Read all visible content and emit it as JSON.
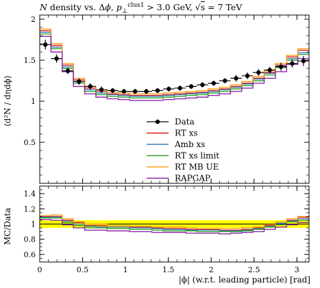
{
  "title": "N density vs. Δφ, p⊥clus1 > 3.0 GeV, √s = 7 TeV",
  "main_ylabel": "⟨d²N / dηdϕ⟩",
  "ratio_ylabel": "MC/Data",
  "xlabel": "|ϕ| (w.r.t. leading particle) [rad]",
  "chart_data": [
    {
      "type": "line",
      "panel": "main",
      "xlim": [
        0,
        3.1416
      ],
      "ylim": [
        0,
        2.05
      ],
      "x_ticks": [
        0,
        0.5,
        1,
        1.5,
        2,
        2.5,
        3
      ],
      "y_ticks": [
        0.5,
        1,
        1.5,
        2
      ],
      "y_tick_labels": [
        "0.5",
        "1",
        "1.5",
        "2"
      ],
      "bin_edges": [
        0,
        0.1309,
        0.2618,
        0.3927,
        0.5236,
        0.6545,
        0.7854,
        0.9163,
        1.0472,
        1.1781,
        1.309,
        1.4399,
        1.5708,
        1.7017,
        1.8326,
        1.9635,
        2.0944,
        2.2253,
        2.3562,
        2.4871,
        2.618,
        2.7489,
        2.8798,
        3.0107,
        3.1416
      ],
      "data": {
        "name": "Data",
        "values": [
          1.69,
          1.52,
          1.37,
          1.24,
          1.18,
          1.14,
          1.13,
          1.12,
          1.12,
          1.12,
          1.13,
          1.15,
          1.16,
          1.18,
          1.2,
          1.22,
          1.25,
          1.28,
          1.31,
          1.35,
          1.38,
          1.42,
          1.46,
          1.49
        ],
        "errors": [
          0.06,
          0.05,
          0.04,
          0.04,
          0.04,
          0.04,
          0.03,
          0.03,
          0.03,
          0.03,
          0.03,
          0.03,
          0.03,
          0.03,
          0.03,
          0.03,
          0.03,
          0.04,
          0.04,
          0.04,
          0.04,
          0.05,
          0.05,
          0.06
        ],
        "color": "#000000"
      },
      "series": [
        {
          "name": "RT xs",
          "color": "#e41a1c",
          "values": [
            1.86,
            1.68,
            1.44,
            1.26,
            1.16,
            1.12,
            1.09,
            1.08,
            1.07,
            1.07,
            1.07,
            1.08,
            1.09,
            1.1,
            1.11,
            1.13,
            1.15,
            1.18,
            1.22,
            1.28,
            1.35,
            1.44,
            1.54,
            1.62
          ]
        },
        {
          "name": "Amb xs",
          "color": "#377eb8",
          "values": [
            1.84,
            1.66,
            1.42,
            1.24,
            1.14,
            1.1,
            1.08,
            1.07,
            1.06,
            1.06,
            1.06,
            1.07,
            1.08,
            1.09,
            1.1,
            1.12,
            1.14,
            1.17,
            1.21,
            1.27,
            1.34,
            1.43,
            1.52,
            1.59
          ]
        },
        {
          "name": "RT xs limit",
          "color": "#2ca02c",
          "values": [
            1.82,
            1.64,
            1.4,
            1.22,
            1.12,
            1.08,
            1.06,
            1.05,
            1.04,
            1.04,
            1.04,
            1.05,
            1.06,
            1.07,
            1.08,
            1.1,
            1.12,
            1.15,
            1.19,
            1.25,
            1.32,
            1.41,
            1.5,
            1.57
          ]
        },
        {
          "name": "RT MB UE",
          "color": "#ff9f1a",
          "values": [
            1.88,
            1.7,
            1.46,
            1.28,
            1.18,
            1.14,
            1.11,
            1.1,
            1.09,
            1.09,
            1.09,
            1.1,
            1.11,
            1.12,
            1.13,
            1.15,
            1.17,
            1.2,
            1.24,
            1.3,
            1.37,
            1.46,
            1.56,
            1.64
          ]
        },
        {
          "name": "RAPGAP",
          "color": "#8e24aa",
          "values": [
            1.79,
            1.6,
            1.36,
            1.18,
            1.09,
            1.05,
            1.03,
            1.02,
            1.01,
            1.01,
            1.01,
            1.02,
            1.03,
            1.04,
            1.05,
            1.07,
            1.09,
            1.12,
            1.16,
            1.22,
            1.28,
            1.36,
            1.45,
            1.52
          ]
        }
      ],
      "legend": [
        "Data",
        "RT xs",
        "Amb xs",
        "RT xs limit",
        "RT MB UE",
        "RAPGAP"
      ],
      "legend_position": "center"
    },
    {
      "type": "line",
      "panel": "ratio",
      "xlim": [
        0,
        3.1416
      ],
      "ylim": [
        0.5,
        1.5
      ],
      "x_ticks": [
        0,
        0.5,
        1,
        1.5,
        2,
        2.5,
        3
      ],
      "x_tick_labels": [
        "0",
        "0.5",
        "1",
        "1.5",
        "2",
        "2.5",
        "3"
      ],
      "y_ticks": [
        0.6,
        0.8,
        1,
        1.2,
        1.4
      ],
      "y_tick_labels": [
        "0.6",
        "0.8",
        "1",
        "1.2",
        "1.4"
      ],
      "data_band": {
        "lower": 0.95,
        "upper": 1.05,
        "color": "#ffff00"
      },
      "series_ratio": {
        "RT xs": [
          1.1,
          1.1,
          1.05,
          1.02,
          0.98,
          0.98,
          0.96,
          0.96,
          0.96,
          0.96,
          0.95,
          0.94,
          0.94,
          0.93,
          0.93,
          0.93,
          0.92,
          0.92,
          0.93,
          0.95,
          0.98,
          1.01,
          1.05,
          1.09
        ],
        "Amb xs": [
          1.09,
          1.09,
          1.04,
          1.0,
          0.97,
          0.96,
          0.96,
          0.96,
          0.95,
          0.95,
          0.94,
          0.93,
          0.93,
          0.92,
          0.92,
          0.92,
          0.91,
          0.91,
          0.92,
          0.94,
          0.97,
          1.01,
          1.04,
          1.07
        ],
        "RT xs limit": [
          1.08,
          1.08,
          1.02,
          0.98,
          0.95,
          0.95,
          0.94,
          0.94,
          0.93,
          0.93,
          0.92,
          0.91,
          0.91,
          0.91,
          0.9,
          0.9,
          0.9,
          0.9,
          0.91,
          0.93,
          0.96,
          0.99,
          1.03,
          1.05
        ],
        "RT MB UE": [
          1.11,
          1.12,
          1.07,
          1.03,
          1.0,
          1.0,
          0.98,
          0.98,
          0.97,
          0.97,
          0.96,
          0.96,
          0.96,
          0.95,
          0.94,
          0.94,
          0.94,
          0.94,
          0.95,
          0.96,
          0.99,
          1.03,
          1.07,
          1.1
        ],
        "RAPGAP": [
          1.06,
          1.05,
          0.99,
          0.95,
          0.92,
          0.92,
          0.91,
          0.91,
          0.9,
          0.9,
          0.89,
          0.89,
          0.89,
          0.88,
          0.88,
          0.88,
          0.87,
          0.88,
          0.89,
          0.9,
          0.93,
          0.96,
          0.99,
          1.02
        ]
      }
    }
  ]
}
